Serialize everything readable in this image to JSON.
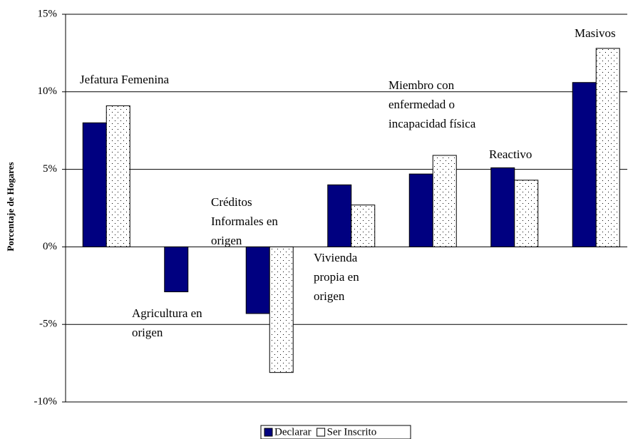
{
  "chart_data": {
    "type": "bar",
    "y_label": "Porcentaje de Hogares",
    "categories": [
      "Jefatura Femenina",
      "Agricultura en origen",
      "Créditos Informales en origen",
      "Vivienda propia en origen",
      "Miembro con enfermedad o incapacidad física",
      "Reactivo",
      "Masivos"
    ],
    "series": [
      {
        "name": "Declarar",
        "color": "#000080",
        "values": [
          8.0,
          -2.9,
          -4.3,
          4.0,
          4.7,
          5.1,
          10.6
        ]
      },
      {
        "name": "Ser Inscrito",
        "color": "#ffffff",
        "values": [
          9.1,
          null,
          -8.1,
          2.7,
          5.9,
          4.3,
          12.8
        ]
      }
    ],
    "ylim": [
      -10,
      15
    ],
    "yticks": [
      {
        "value": -10,
        "label": "-10%"
      },
      {
        "value": -5,
        "label": "-5%"
      },
      {
        "value": 0,
        "label": "0%"
      },
      {
        "value": 5,
        "label": "5%"
      },
      {
        "value": 10,
        "label": "10%"
      },
      {
        "value": 15,
        "label": "15%"
      }
    ],
    "grid": true,
    "legend": "bottom"
  }
}
